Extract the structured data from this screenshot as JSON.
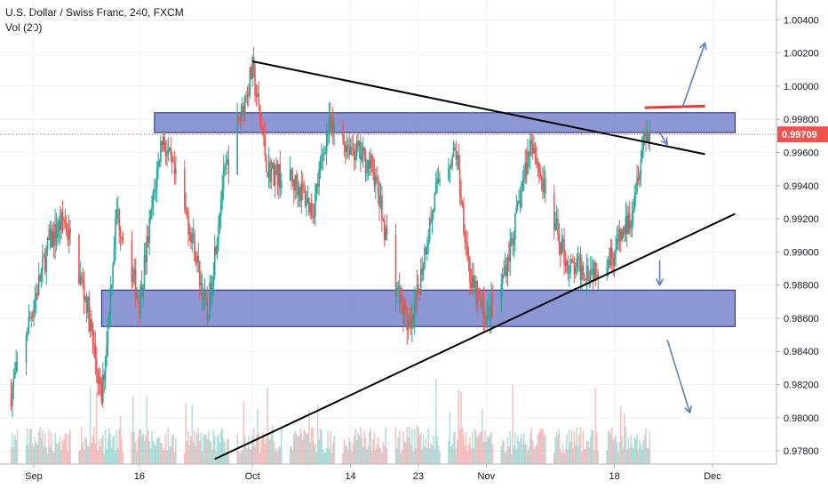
{
  "header": {
    "symbol_line": "U.S. Dollar / Swiss Franc, 240, FXCM",
    "indicator_line": "Vol (20)"
  },
  "chart_data": {
    "type": "candlestick",
    "title": "U.S. Dollar / Swiss Franc, 240, FXCM",
    "ylim": [
      0.9772,
      1.0052
    ],
    "y_ticks": [
      "1.00400",
      "1.00200",
      "1.00000",
      "0.99800",
      "0.99600",
      "0.99400",
      "0.99200",
      "0.99000",
      "0.98800",
      "0.98600",
      "0.98400",
      "0.98200",
      "0.98000",
      "0.97800"
    ],
    "y_tick_values": [
      1.004,
      1.002,
      1.0,
      0.998,
      0.996,
      0.994,
      0.992,
      0.99,
      0.988,
      0.986,
      0.984,
      0.982,
      0.98,
      0.978
    ],
    "x_ticks": [
      "Sep",
      "16",
      "Oct",
      "14",
      "23",
      "Nov",
      "18",
      "Dec"
    ],
    "x_tick_dates": [
      "2019-09-02",
      "2019-09-16",
      "2019-10-01",
      "2019-10-14",
      "2019-10-23",
      "2019-11-01",
      "2019-11-18",
      "2019-12-01"
    ],
    "current_price": "0.99709",
    "current_price_value": 0.99709,
    "colors": {
      "up": "#26a69a",
      "down": "#ef5350",
      "zone": "#5c6bc0",
      "resistance": "#e53935",
      "arrow": "#5b7fc0",
      "price_label": "#ef5350"
    },
    "path_points": [
      {
        "date": "2019-08-30",
        "price": 0.9815
      },
      {
        "date": "2019-09-04",
        "price": 0.9905
      },
      {
        "date": "2019-09-06",
        "price": 0.992
      },
      {
        "date": "2019-09-09",
        "price": 0.987
      },
      {
        "date": "2019-09-11",
        "price": 0.981
      },
      {
        "date": "2019-09-13",
        "price": 0.9925
      },
      {
        "date": "2019-09-16",
        "price": 0.987
      },
      {
        "date": "2019-09-19",
        "price": 0.997
      },
      {
        "date": "2019-09-23",
        "price": 0.991
      },
      {
        "date": "2019-09-25",
        "price": 0.986
      },
      {
        "date": "2019-09-27",
        "price": 0.994
      },
      {
        "date": "2019-10-01",
        "price": 1.001
      },
      {
        "date": "2019-10-03",
        "price": 0.995
      },
      {
        "date": "2019-10-07",
        "price": 0.994
      },
      {
        "date": "2019-10-09",
        "price": 0.9925
      },
      {
        "date": "2019-10-11",
        "price": 0.9975
      },
      {
        "date": "2019-10-15",
        "price": 0.996
      },
      {
        "date": "2019-10-17",
        "price": 0.995
      },
      {
        "date": "2019-10-20",
        "price": 0.988
      },
      {
        "date": "2019-10-22",
        "price": 0.985
      },
      {
        "date": "2019-10-24",
        "price": 0.9905
      },
      {
        "date": "2019-10-26",
        "price": 0.995
      },
      {
        "date": "2019-10-28",
        "price": 0.996
      },
      {
        "date": "2019-10-30",
        "price": 0.988
      },
      {
        "date": "2019-11-01",
        "price": 0.986
      },
      {
        "date": "2019-11-03",
        "price": 0.988
      },
      {
        "date": "2019-11-05",
        "price": 0.992
      },
      {
        "date": "2019-11-07",
        "price": 0.997
      },
      {
        "date": "2019-11-09",
        "price": 0.993
      },
      {
        "date": "2019-11-12",
        "price": 0.989
      },
      {
        "date": "2019-11-15",
        "price": 0.989
      },
      {
        "date": "2019-11-18",
        "price": 0.99
      },
      {
        "date": "2019-11-20",
        "price": 0.992
      },
      {
        "date": "2019-11-22",
        "price": 0.9972
      }
    ],
    "zones": [
      {
        "name": "upper-zone",
        "from": "2019-09-18",
        "to": "2019-12-04",
        "high": 0.9984,
        "low": 0.9972
      },
      {
        "name": "lower-zone",
        "from": "2019-09-11",
        "to": "2019-12-04",
        "high": 0.9877,
        "low": 0.9855
      }
    ],
    "trendlines": [
      {
        "name": "descending-trendline",
        "from": {
          "date": "2019-10-01",
          "price": 1.0015
        },
        "to": {
          "date": "2019-11-30",
          "price": 0.9959
        },
        "color": "#000000"
      },
      {
        "name": "ascending-trendline",
        "from": {
          "date": "2019-09-26",
          "price": 0.9775
        },
        "to": {
          "date": "2019-12-04",
          "price": 0.9923
        },
        "color": "#000000"
      },
      {
        "name": "resistance-line",
        "from": {
          "date": "2019-11-22",
          "price": 0.9987
        },
        "to": {
          "date": "2019-11-30",
          "price": 0.9988
        },
        "color": "#e53935"
      }
    ],
    "arrows": [
      {
        "name": "arrow-up-breakout",
        "from": {
          "date": "2019-11-27",
          "price": 0.9987
        },
        "to": {
          "date": "2019-11-30",
          "price": 1.0026
        }
      },
      {
        "name": "arrow-short-down",
        "from": {
          "date": "2019-11-24",
          "price": 0.9972
        },
        "to": {
          "date": "2019-11-25",
          "price": 0.9965
        }
      },
      {
        "name": "arrow-mid-down",
        "from": {
          "date": "2019-11-24",
          "price": 0.9895
        },
        "to": {
          "date": "2019-11-24",
          "price": 0.988
        }
      },
      {
        "name": "arrow-long-down",
        "from": {
          "date": "2019-11-25",
          "price": 0.9847
        },
        "to": {
          "date": "2019-11-28",
          "price": 0.9803
        }
      }
    ]
  }
}
